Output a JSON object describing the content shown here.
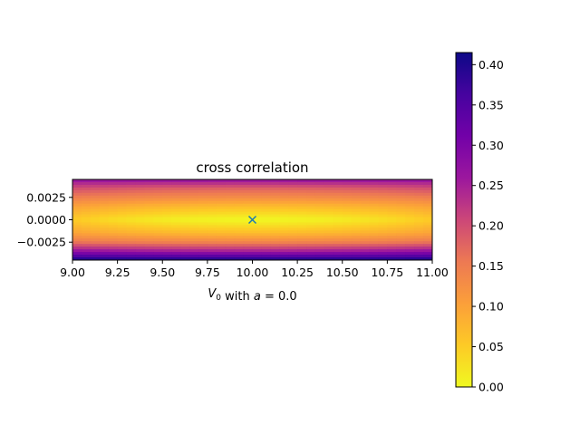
{
  "chart_data": {
    "type": "heatmap",
    "title": "cross correlation",
    "xlabel": "V_0 with a = 0.0",
    "xlabel_display": {
      "prefix": "V",
      "subscript": "0",
      "middle": " with ",
      "var": "a",
      "suffix": " = 0.0"
    },
    "ylabel": "",
    "xlim": [
      9.0,
      11.0
    ],
    "ylim": [
      -0.0045,
      0.0045
    ],
    "x_ticks": [
      9.0,
      9.25,
      9.5,
      9.75,
      10.0,
      10.25,
      10.5,
      10.75,
      11.0
    ],
    "x_tick_labels": [
      "9.00",
      "9.25",
      "9.50",
      "9.75",
      "10.00",
      "10.25",
      "10.50",
      "10.75",
      "11.00"
    ],
    "y_ticks": [
      0.0025,
      0.0,
      -0.0025
    ],
    "y_tick_labels": [
      "0.0025",
      "0.0000",
      "−0.0025"
    ],
    "colormap": "plasma_r",
    "colorbar": {
      "min": 0.0,
      "max": 0.415,
      "ticks": [
        0.0,
        0.05,
        0.1,
        0.15,
        0.2,
        0.25,
        0.3,
        0.35,
        0.4
      ],
      "tick_labels": [
        "0.00",
        "0.05",
        "0.10",
        "0.15",
        "0.20",
        "0.25",
        "0.30",
        "0.35",
        "0.40"
      ]
    },
    "marker": {
      "x": 10.0,
      "y": 0.0,
      "symbol": "x",
      "color": "#1f77b4"
    },
    "field_samples": {
      "y": [
        0.0045,
        0.0035,
        0.0025,
        0.0015,
        0.0,
        -0.0015,
        -0.0025,
        -0.0035,
        -0.0045
      ],
      "value_at_x_center": [
        0.27,
        0.18,
        0.13,
        0.07,
        0.0,
        0.07,
        0.14,
        0.25,
        0.41
      ],
      "value_at_x_edges": [
        0.27,
        0.2,
        0.15,
        0.1,
        0.05,
        0.1,
        0.16,
        0.27,
        0.41
      ]
    }
  }
}
